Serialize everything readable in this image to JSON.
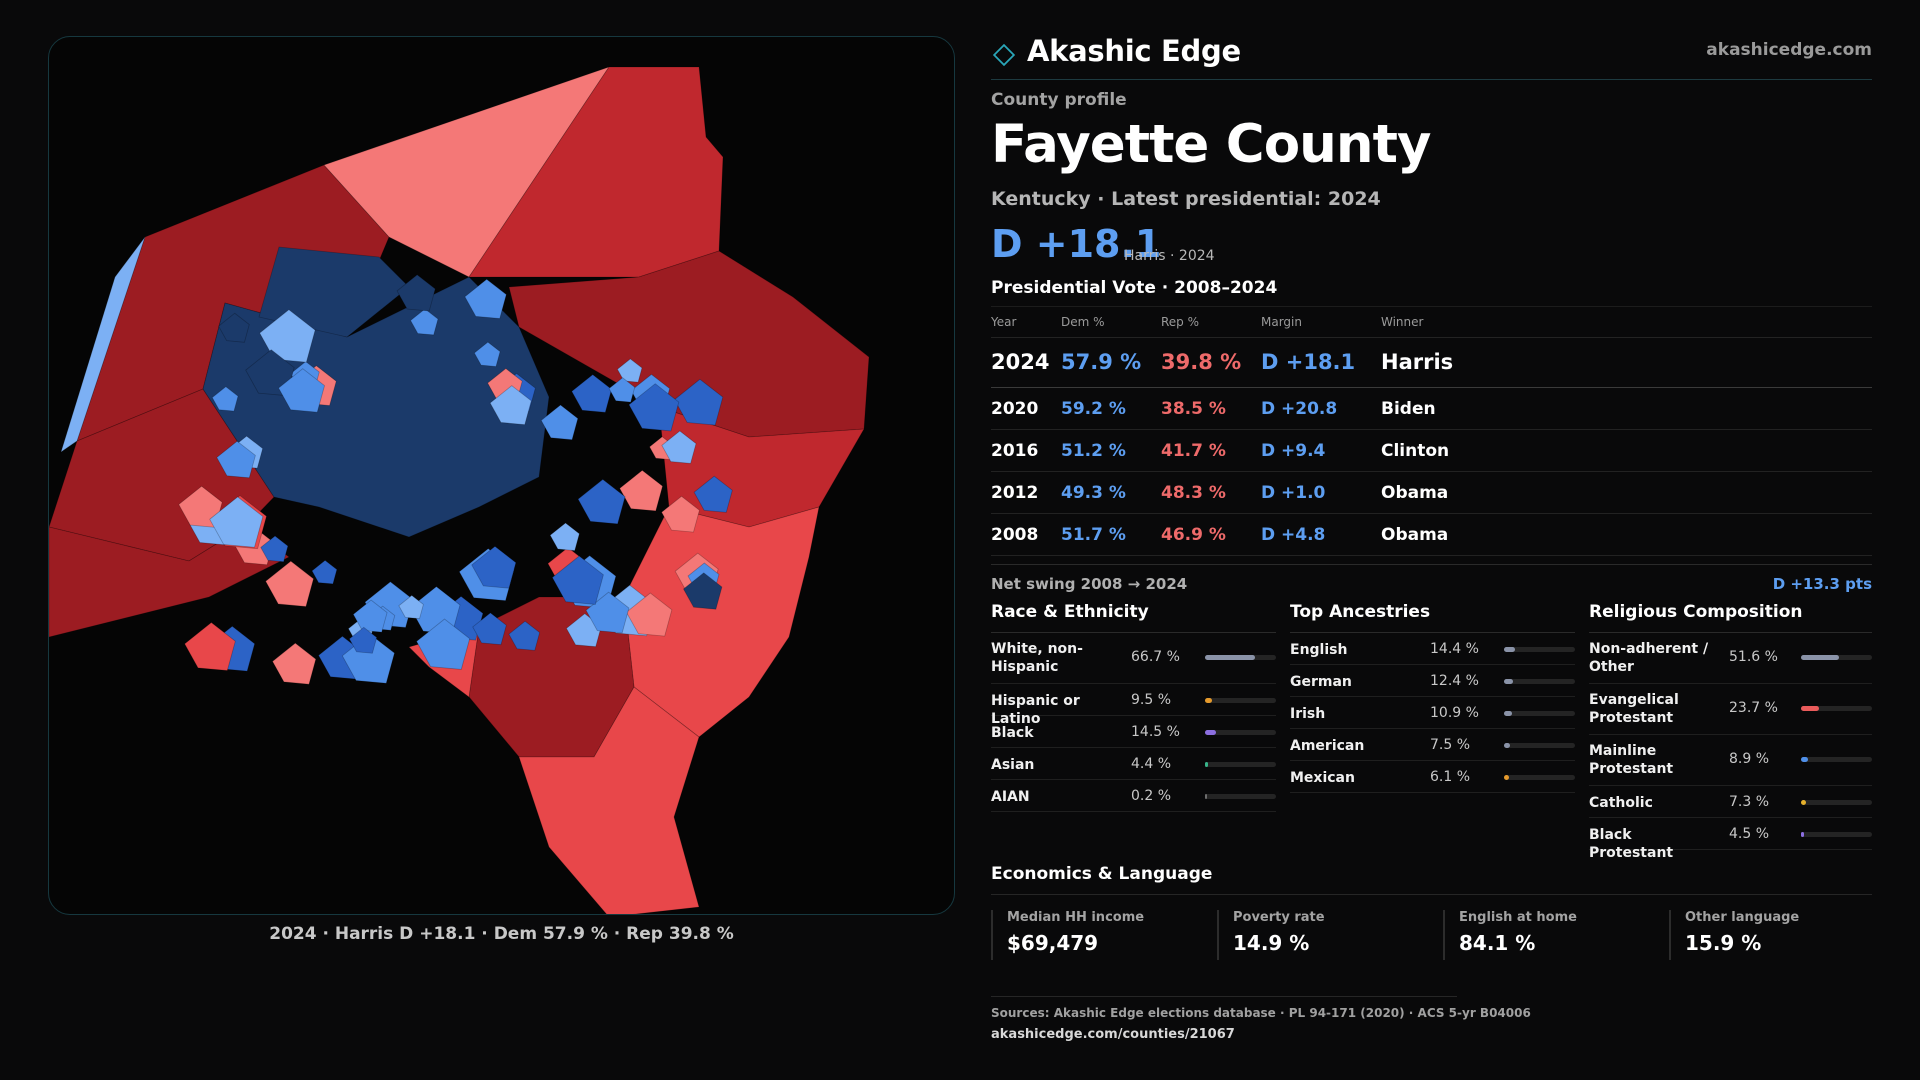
{
  "brand": {
    "name": "Akashic Edge",
    "url": "akashicedge.com"
  },
  "profile": {
    "eyebrow": "County profile",
    "county": "Fayette County",
    "subtitle": "Kentucky · Latest presidential: 2024",
    "margin": "D +18.1",
    "margin_note": "Harris · 2024"
  },
  "presidential": {
    "title": "Presidential Vote · 2008–2024",
    "headers": {
      "year": "Year",
      "dem": "Dem %",
      "rep": "Rep %",
      "margin": "Margin",
      "winner": "Winner"
    },
    "rows": [
      {
        "year": "2024",
        "dem": "57.9 %",
        "rep": "39.8 %",
        "margin": "D +18.1",
        "winner": "Harris"
      },
      {
        "year": "2020",
        "dem": "59.2 %",
        "rep": "38.5 %",
        "margin": "D +20.8",
        "winner": "Biden"
      },
      {
        "year": "2016",
        "dem": "51.2 %",
        "rep": "41.7 %",
        "margin": "D +9.4",
        "winner": "Clinton"
      },
      {
        "year": "2012",
        "dem": "49.3 %",
        "rep": "48.3 %",
        "margin": "D +1.0",
        "winner": "Obama"
      },
      {
        "year": "2008",
        "dem": "51.7 %",
        "rep": "46.9 %",
        "margin": "D +4.8",
        "winner": "Obama"
      }
    ],
    "swing_label": "Net swing 2008 → 2024",
    "swing_value": "D +13.3 pts"
  },
  "race": {
    "title": "Race & Ethnicity",
    "items": [
      {
        "label": "White, non-Hispanic",
        "pct": "66.7 %",
        "value": 66.7,
        "color": "#8a93a8"
      },
      {
        "label": "Hispanic or Latino",
        "pct": "9.5 %",
        "value": 9.5,
        "color": "#e59a2c"
      },
      {
        "label": "Black",
        "pct": "14.5 %",
        "value": 14.5,
        "color": "#8c6fe0"
      },
      {
        "label": "Asian",
        "pct": "4.4 %",
        "value": 4.4,
        "color": "#38b48a"
      },
      {
        "label": "AIAN",
        "pct": "0.2 %",
        "value": 0.2,
        "color": "#6d6d6d"
      }
    ]
  },
  "ancestry": {
    "title": "Top Ancestries",
    "items": [
      {
        "label": "English",
        "pct": "14.4 %",
        "value": 14.4,
        "color": "#8a93a8"
      },
      {
        "label": "German",
        "pct": "12.4 %",
        "value": 12.4,
        "color": "#8a93a8"
      },
      {
        "label": "Irish",
        "pct": "10.9 %",
        "value": 10.9,
        "color": "#8a93a8"
      },
      {
        "label": "American",
        "pct": "7.5 %",
        "value": 7.5,
        "color": "#8a93a8"
      },
      {
        "label": "Mexican",
        "pct": "6.1 %",
        "value": 6.1,
        "color": "#e59a2c"
      }
    ]
  },
  "religion": {
    "title": "Religious Composition",
    "items": [
      {
        "label": "Non-adherent / Other",
        "pct": "51.6 %",
        "value": 51.6,
        "color": "#8a93a8"
      },
      {
        "label": "Evangelical Protestant",
        "pct": "23.7 %",
        "value": 23.7,
        "color": "#ea5b5b"
      },
      {
        "label": "Mainline Protestant",
        "pct": "8.9 %",
        "value": 8.9,
        "color": "#4f8fe8"
      },
      {
        "label": "Catholic",
        "pct": "7.3 %",
        "value": 7.3,
        "color": "#e5b02c"
      },
      {
        "label": "Black Protestant",
        "pct": "4.5 %",
        "value": 4.5,
        "color": "#8c6fe0"
      }
    ]
  },
  "economics": {
    "title": "Economics & Language",
    "cards": [
      {
        "label": "Median HH income",
        "value": "$69,479"
      },
      {
        "label": "Poverty rate",
        "value": "14.9 %"
      },
      {
        "label": "English at home",
        "value": "84.1 %"
      },
      {
        "label": "Other language",
        "value": "15.9 %"
      }
    ]
  },
  "map": {
    "caption": "2024 · Harris D +18.1 · Dem 57.9 % · Rep 39.8 %",
    "colors": {
      "dem_strong": "#1b3a6a",
      "dem": "#2c63c6",
      "dem_lean": "#4f8fe8",
      "dem_tilt": "#7cb0f4",
      "rep_strong": "#9c1c22",
      "rep": "#c0282e",
      "rep_lean": "#e8474a",
      "rep_tilt": "#f47877"
    }
  },
  "sources": {
    "text": "Sources: Akashic Edge elections database · PL 94-171 (2020) · ACS 5-yr B04006",
    "url": "akashicedge.com/counties/21067"
  }
}
